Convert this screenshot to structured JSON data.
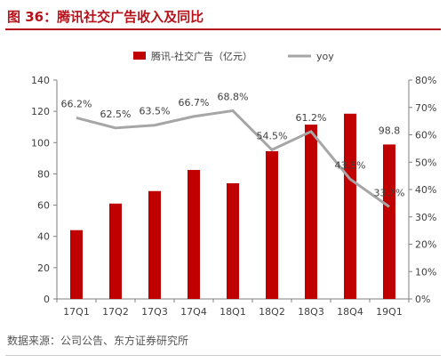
{
  "title": "图 36：腾讯社交广告收入及同比",
  "source": "数据来源：公司公告、东方证券研究所",
  "chart_data": {
    "type": "bar+line",
    "categories": [
      "17Q1",
      "17Q2",
      "17Q3",
      "17Q4",
      "18Q1",
      "18Q2",
      "18Q3",
      "18Q4",
      "19Q1"
    ],
    "category_labels": [
      "17Q1",
      "17Q2",
      "17Q3",
      "17Q4",
      "18Q1",
      "18Q2",
      "18Q3",
      "18Q4",
      "19Q1"
    ],
    "series": [
      {
        "name": "腾讯-社交广告（亿元）",
        "type": "bar",
        "axis": "left",
        "color": "#c00000",
        "values": [
          44,
          61,
          69,
          82.5,
          74,
          94.5,
          111.5,
          118.5,
          98.8
        ],
        "labels": [
          "",
          "",
          "",
          "",
          "",
          "",
          "",
          "",
          "98.8"
        ]
      },
      {
        "name": "yoy",
        "type": "line",
        "axis": "right",
        "color": "#a6a6a6",
        "values": [
          66.2,
          62.5,
          63.5,
          66.7,
          68.8,
          54.5,
          61.2,
          43.8,
          33.7
        ],
        "labels": [
          "66.2%",
          "62.5%",
          "63.5%",
          "66.7%",
          "68.8%",
          "54.5%",
          "61.2%",
          "43.8%",
          "33.7%"
        ]
      }
    ],
    "left_axis": {
      "min": 0,
      "max": 140,
      "step": 20,
      "ticks": [
        "0",
        "20",
        "40",
        "60",
        "80",
        "100",
        "120",
        "140"
      ]
    },
    "right_axis": {
      "min": 0,
      "max": 80,
      "step": 10,
      "ticks": [
        "0%",
        "10%",
        "20%",
        "30%",
        "40%",
        "50%",
        "60%",
        "70%",
        "80%"
      ]
    },
    "legend_position": "top",
    "grid": false
  }
}
